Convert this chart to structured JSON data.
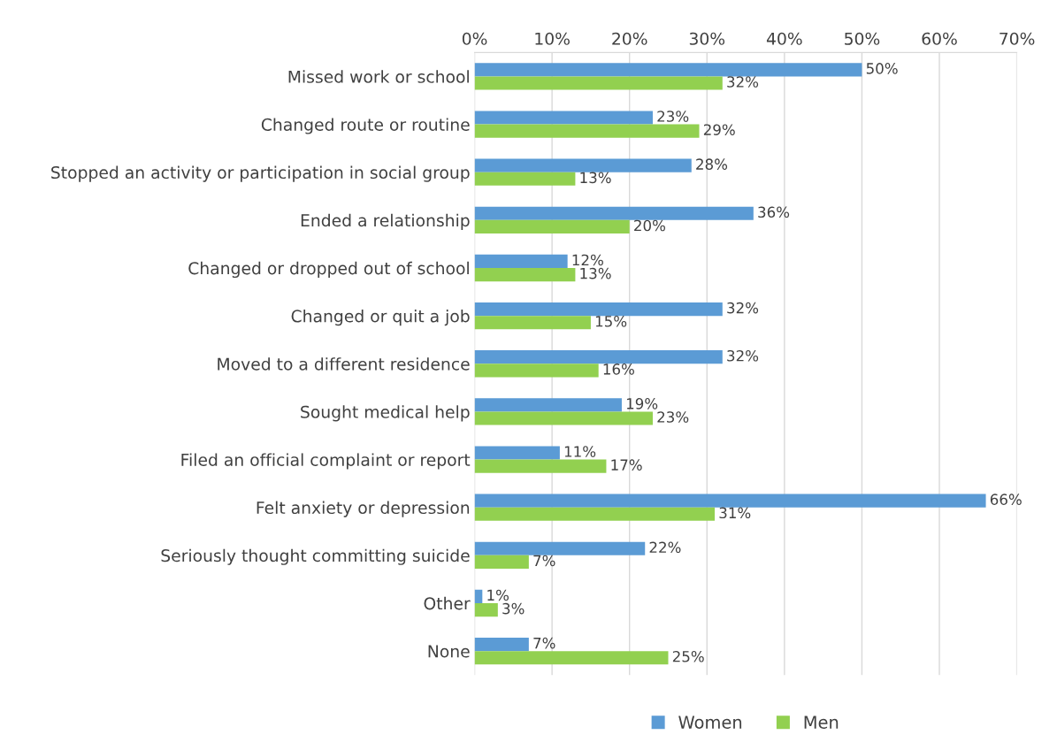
{
  "chart_data": {
    "type": "bar",
    "orientation": "horizontal",
    "categories": [
      "Missed work or school",
      "Changed route or routine",
      "Stopped an activity or participation in social group",
      "Ended a relationship",
      "Changed or dropped out of school",
      "Changed or quit a job",
      "Moved to a different residence",
      "Sought medical help",
      "Filed an official complaint or report",
      "Felt anxiety or depression",
      "Seriously thought committing suicide",
      "Other",
      "None"
    ],
    "series": [
      {
        "name": "Women",
        "color": "#5b9bd5",
        "values": [
          50,
          23,
          28,
          36,
          12,
          32,
          32,
          19,
          11,
          66,
          22,
          1,
          7
        ],
        "value_labels": [
          "50%",
          "23%",
          "28%",
          "36%",
          "12%",
          "32%",
          "32%",
          "19%",
          "11%",
          "66%",
          "22%",
          "1%",
          "7%"
        ]
      },
      {
        "name": "Men",
        "color": "#92d050",
        "values": [
          32,
          29,
          13,
          20,
          13,
          15,
          16,
          23,
          17,
          31,
          7,
          3,
          25
        ],
        "value_labels": [
          "32%",
          "29%",
          "13%",
          "20%",
          "13%",
          "15%",
          "16%",
          "23%",
          "17%",
          "31%",
          "7%",
          "3%",
          "25%"
        ]
      }
    ],
    "xlim": [
      0,
      70
    ],
    "xticks": [
      {
        "value": 0,
        "label": "0%"
      },
      {
        "value": 10,
        "label": "10%"
      },
      {
        "value": 20,
        "label": "20%"
      },
      {
        "value": 30,
        "label": "30%"
      },
      {
        "value": 40,
        "label": "40%"
      },
      {
        "value": 50,
        "label": "50%"
      },
      {
        "value": 60,
        "label": "60%"
      },
      {
        "value": 70,
        "label": "70%"
      }
    ],
    "grid": "x",
    "legend": "bottom"
  }
}
